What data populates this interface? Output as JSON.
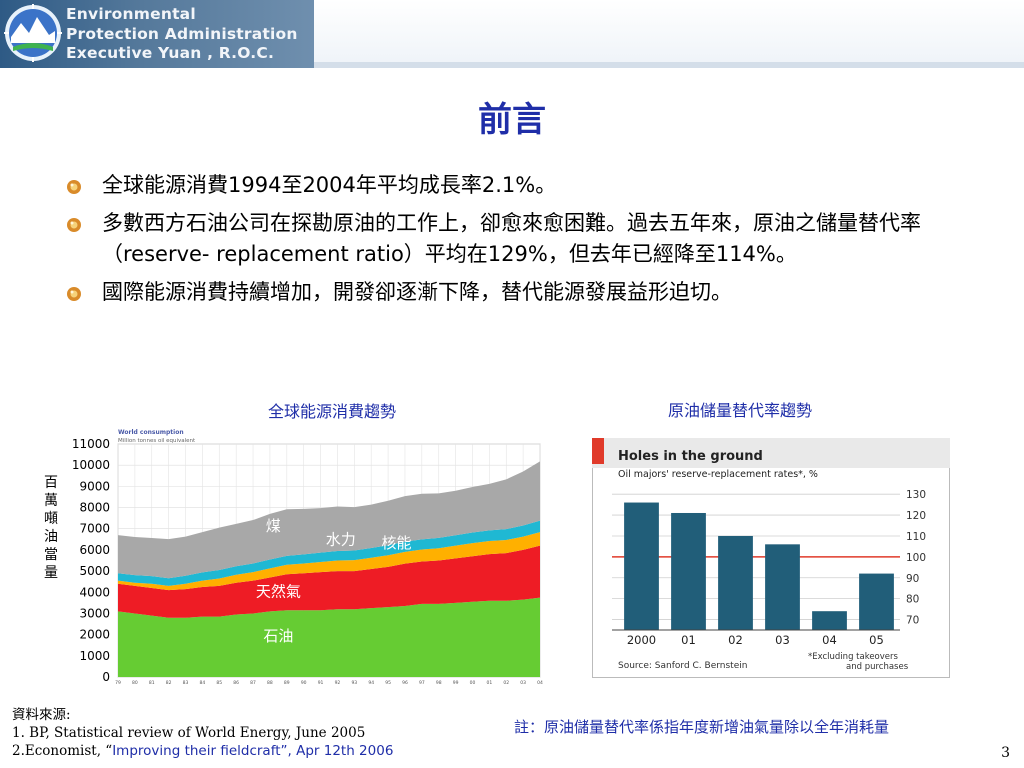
{
  "header": {
    "line1": "Environmental",
    "line2": "Protection Administration",
    "line3": "Executive  Yuan , R.O.C."
  },
  "title": "前言",
  "bullets": [
    "全球能源消費1994至2004年平均成長率2.1%。",
    "多數西方石油公司在探勘原油的工作上，卻愈來愈困難。過去五年來，原油之儲量替代率（reserve- replacement ratio）平均在129%，但去年已經降至114%。",
    "國際能源消費持續增加，開發卻逐漸下降，替代能源發展益形迫切。"
  ],
  "chart1": {
    "caption": "全球能源消費趨勢",
    "inner_title": "World consumption",
    "inner_subtitle": "Million tonnes oil equivalent",
    "ylabel": "百萬噸油當量",
    "yticks": [
      "11000",
      "10000",
      "9000",
      "8000",
      "7000",
      "6000",
      "5000",
      "4000",
      "3000",
      "2000",
      "1000",
      "0"
    ],
    "labels": {
      "coal": "煤",
      "hydro": "水力",
      "nuclear": "核能",
      "gas": "天然氣",
      "oil": "石油"
    }
  },
  "chart2": {
    "caption": "原油儲量替代率趨勢",
    "inner_title": "Holes in the ground",
    "inner_subtitle": "Oil majors' reserve-replacement rates*, %",
    "source": "Source: Sanford C. Bernstein",
    "footnote1": "*Excluding takeovers",
    "footnote2": "and purchases"
  },
  "chart_data": [
    {
      "type": "area",
      "title": "World consumption",
      "ylabel": "百萬噸油當量",
      "ylim": [
        0,
        11000
      ],
      "x": [
        "79",
        "80",
        "81",
        "82",
        "83",
        "84",
        "85",
        "86",
        "87",
        "88",
        "89",
        "90",
        "91",
        "92",
        "93",
        "94",
        "95",
        "96",
        "97",
        "98",
        "99",
        "00",
        "01",
        "02",
        "03",
        "04"
      ],
      "series": [
        {
          "name": "石油",
          "values": [
            3100,
            3000,
            2900,
            2800,
            2800,
            2850,
            2850,
            2950,
            3000,
            3100,
            3150,
            3150,
            3150,
            3200,
            3200,
            3250,
            3300,
            3350,
            3450,
            3450,
            3500,
            3550,
            3600,
            3600,
            3650,
            3750
          ]
        },
        {
          "name": "天然氣",
          "values": [
            1300,
            1300,
            1300,
            1300,
            1350,
            1400,
            1450,
            1500,
            1550,
            1600,
            1700,
            1750,
            1800,
            1800,
            1800,
            1850,
            1900,
            2000,
            2000,
            2050,
            2100,
            2150,
            2200,
            2250,
            2350,
            2450
          ]
        },
        {
          "name": "核能",
          "values": [
            150,
            150,
            200,
            200,
            250,
            300,
            350,
            380,
            400,
            430,
            450,
            460,
            480,
            500,
            520,
            530,
            550,
            560,
            570,
            580,
            600,
            620,
            620,
            620,
            630,
            640
          ]
        },
        {
          "name": "水力",
          "values": [
            350,
            360,
            360,
            360,
            380,
            390,
            400,
            400,
            410,
            420,
            420,
            430,
            440,
            450,
            450,
            460,
            470,
            480,
            480,
            490,
            490,
            500,
            500,
            510,
            520,
            540
          ]
        },
        {
          "name": "煤",
          "values": [
            1800,
            1800,
            1800,
            1850,
            1850,
            1900,
            2000,
            2000,
            2050,
            2150,
            2200,
            2150,
            2100,
            2100,
            2050,
            2050,
            2100,
            2150,
            2150,
            2100,
            2100,
            2150,
            2200,
            2350,
            2550,
            2800
          ]
        }
      ]
    },
    {
      "type": "bar",
      "title": "Holes in the ground",
      "subtitle": "Oil majors' reserve-replacement rates*, %",
      "categories": [
        "2000",
        "01",
        "02",
        "03",
        "04",
        "05"
      ],
      "values": [
        126,
        121,
        110,
        106,
        74,
        92
      ],
      "ylim": [
        65,
        132
      ],
      "yticks": [
        70,
        80,
        90,
        100,
        110,
        120,
        130
      ],
      "reference_line": 100
    }
  ],
  "sources": {
    "heading": "資料來源:",
    "line1": "1. BP, Statistical review of World Energy, June 2005",
    "line2_prefix": "2.Economist, “",
    "line2_italic": "Improving their fieldcraft”, Apr 12th 2006"
  },
  "note": "註：原油儲量替代率係指年度新增油氣量除以全年消耗量",
  "page_number": "3",
  "colors": {
    "title": "#1f2ea8",
    "oil": "#66cc33",
    "gas": "#ee1c25",
    "nuclear": "#ffb000",
    "hydro": "#1fb8d3",
    "coal": "#a8a8a8",
    "bar": "#215e79"
  }
}
